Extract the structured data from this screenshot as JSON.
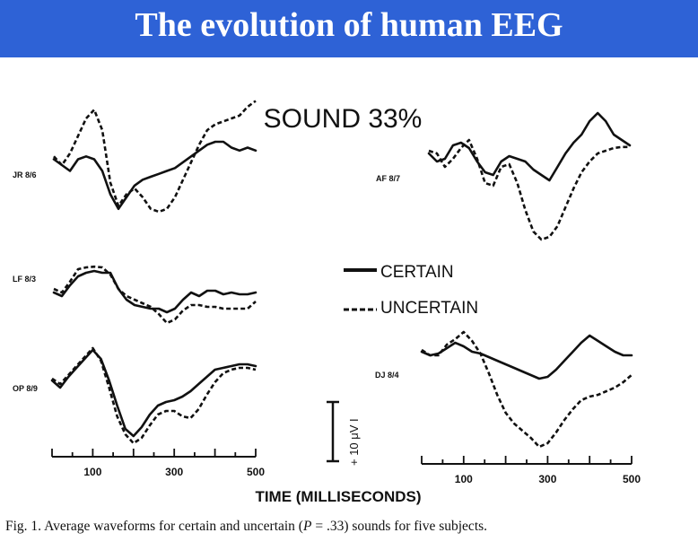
{
  "slide": {
    "title": "The evolution of human EEG"
  },
  "figure": {
    "heading": "SOUND 33%",
    "panels": [
      {
        "id": "left-top",
        "label": "JR 8/6"
      },
      {
        "id": "right-top",
        "label": "AF 8/7"
      },
      {
        "id": "left-mid",
        "label": "LF 8/3"
      },
      {
        "id": "left-bottom",
        "label": "OP 8/9"
      },
      {
        "id": "right-bottom",
        "label": "DJ 8/4"
      }
    ],
    "legend": {
      "certain": "CERTAIN",
      "uncertain": "UNCERTAIN"
    },
    "scale_bar_label": "+ 10 μV I",
    "x_ticks": [
      "100",
      "300",
      "500"
    ],
    "x_axis_title": "TIME (MILLISECONDS)"
  },
  "chart_data": {
    "type": "line",
    "title": "SOUND 33%",
    "xlabel": "TIME (MILLISECONDS)",
    "x_tick_labels": [
      100,
      300,
      500
    ],
    "x_range_ms": [
      0,
      500
    ],
    "scale": "10 μV",
    "series_names": [
      "CERTAIN",
      "UNCERTAIN"
    ],
    "panels": [
      {
        "subject": "JR 8/6",
        "x": [
          0,
          20,
          40,
          60,
          80,
          100,
          120,
          140,
          160,
          180,
          200,
          220,
          240,
          260,
          280,
          300,
          320,
          340,
          360,
          380,
          400,
          420,
          440,
          460,
          480,
          500
        ],
        "certain": [
          0.1,
          0.0,
          -0.1,
          0.1,
          0.15,
          0.1,
          -0.1,
          -0.5,
          -0.75,
          -0.55,
          -0.35,
          -0.25,
          -0.2,
          -0.15,
          -0.1,
          -0.05,
          0.05,
          0.15,
          0.25,
          0.35,
          0.4,
          0.4,
          0.3,
          0.25,
          0.3,
          0.25
        ],
        "uncertain": [
          0.15,
          0.0,
          0.2,
          0.5,
          0.8,
          0.95,
          0.6,
          -0.3,
          -0.7,
          -0.5,
          -0.4,
          -0.55,
          -0.75,
          -0.8,
          -0.75,
          -0.55,
          -0.25,
          0.05,
          0.35,
          0.6,
          0.7,
          0.75,
          0.8,
          0.85,
          1.0,
          1.1
        ]
      },
      {
        "subject": "AF 8/7",
        "x": [
          0,
          20,
          40,
          60,
          80,
          100,
          120,
          140,
          160,
          180,
          200,
          220,
          240,
          260,
          280,
          300,
          320,
          340,
          360,
          380,
          400,
          420,
          440,
          460,
          480,
          500
        ],
        "certain": [
          0.3,
          0.15,
          0.2,
          0.45,
          0.5,
          0.4,
          0.15,
          -0.05,
          -0.1,
          0.15,
          0.25,
          0.2,
          0.15,
          0.0,
          -0.1,
          -0.2,
          0.05,
          0.3,
          0.5,
          0.65,
          0.9,
          1.05,
          0.9,
          0.65,
          0.55,
          0.45
        ],
        "uncertain": [
          0.35,
          0.3,
          0.05,
          0.2,
          0.4,
          0.55,
          0.2,
          -0.25,
          -0.3,
          0.05,
          0.1,
          -0.25,
          -0.75,
          -1.15,
          -1.3,
          -1.25,
          -1.05,
          -0.7,
          -0.35,
          -0.05,
          0.15,
          0.3,
          0.35,
          0.4,
          0.42,
          0.42
        ]
      },
      {
        "subject": "LF 8/3",
        "x": [
          0,
          20,
          40,
          60,
          80,
          100,
          120,
          140,
          160,
          180,
          200,
          220,
          240,
          260,
          280,
          300,
          320,
          340,
          360,
          380,
          400,
          420,
          440,
          460,
          480,
          500
        ],
        "certain": [
          0.0,
          -0.1,
          0.2,
          0.45,
          0.55,
          0.6,
          0.55,
          0.55,
          0.1,
          -0.2,
          -0.35,
          -0.4,
          -0.45,
          -0.45,
          -0.55,
          -0.45,
          -0.2,
          0.0,
          -0.1,
          0.05,
          0.05,
          -0.05,
          0.0,
          -0.05,
          -0.05,
          0.0
        ],
        "uncertain": [
          0.1,
          0.0,
          0.3,
          0.65,
          0.7,
          0.72,
          0.7,
          0.5,
          0.1,
          -0.1,
          -0.2,
          -0.3,
          -0.4,
          -0.6,
          -0.85,
          -0.75,
          -0.5,
          -0.35,
          -0.35,
          -0.4,
          -0.4,
          -0.45,
          -0.45,
          -0.45,
          -0.45,
          -0.25
        ]
      },
      {
        "subject": "OP 8/9",
        "x": [
          0,
          20,
          40,
          60,
          80,
          100,
          120,
          140,
          160,
          180,
          200,
          220,
          240,
          260,
          280,
          300,
          320,
          340,
          360,
          380,
          400,
          420,
          440,
          460,
          480,
          500
        ],
        "certain": [
          0.0,
          -0.2,
          0.1,
          0.35,
          0.6,
          0.85,
          0.6,
          0.0,
          -0.7,
          -1.35,
          -1.55,
          -1.3,
          -0.95,
          -0.7,
          -0.6,
          -0.55,
          -0.45,
          -0.3,
          -0.1,
          0.1,
          0.3,
          0.35,
          0.4,
          0.45,
          0.45,
          0.4
        ],
        "uncertain": [
          0.05,
          -0.1,
          0.15,
          0.4,
          0.65,
          0.9,
          0.55,
          -0.2,
          -1.0,
          -1.5,
          -1.75,
          -1.6,
          -1.25,
          -0.95,
          -0.85,
          -0.85,
          -1.0,
          -1.05,
          -0.8,
          -0.4,
          -0.05,
          0.2,
          0.3,
          0.35,
          0.35,
          0.3
        ]
      },
      {
        "subject": "DJ 8/4",
        "x": [
          0,
          20,
          40,
          60,
          80,
          100,
          120,
          140,
          160,
          180,
          200,
          220,
          240,
          260,
          280,
          300,
          320,
          340,
          360,
          380,
          400,
          420,
          440,
          460,
          480,
          500
        ],
        "certain": [
          0.3,
          0.2,
          0.25,
          0.4,
          0.55,
          0.45,
          0.3,
          0.25,
          0.15,
          0.05,
          -0.05,
          -0.15,
          -0.25,
          -0.35,
          -0.45,
          -0.4,
          -0.2,
          0.05,
          0.3,
          0.55,
          0.75,
          0.6,
          0.45,
          0.3,
          0.2,
          0.2
        ],
        "uncertain": [
          0.35,
          0.2,
          0.2,
          0.5,
          0.65,
          0.85,
          0.6,
          0.25,
          -0.3,
          -0.9,
          -1.4,
          -1.7,
          -1.9,
          -2.1,
          -2.35,
          -2.25,
          -1.95,
          -1.6,
          -1.3,
          -1.05,
          -0.95,
          -0.9,
          -0.8,
          -0.7,
          -0.55,
          -0.35
        ]
      }
    ]
  },
  "caption": {
    "prefix": "Fig. 1. Average waveforms for certain and uncertain (",
    "var": "P",
    "middle": " = .33) sounds for five subjects."
  }
}
